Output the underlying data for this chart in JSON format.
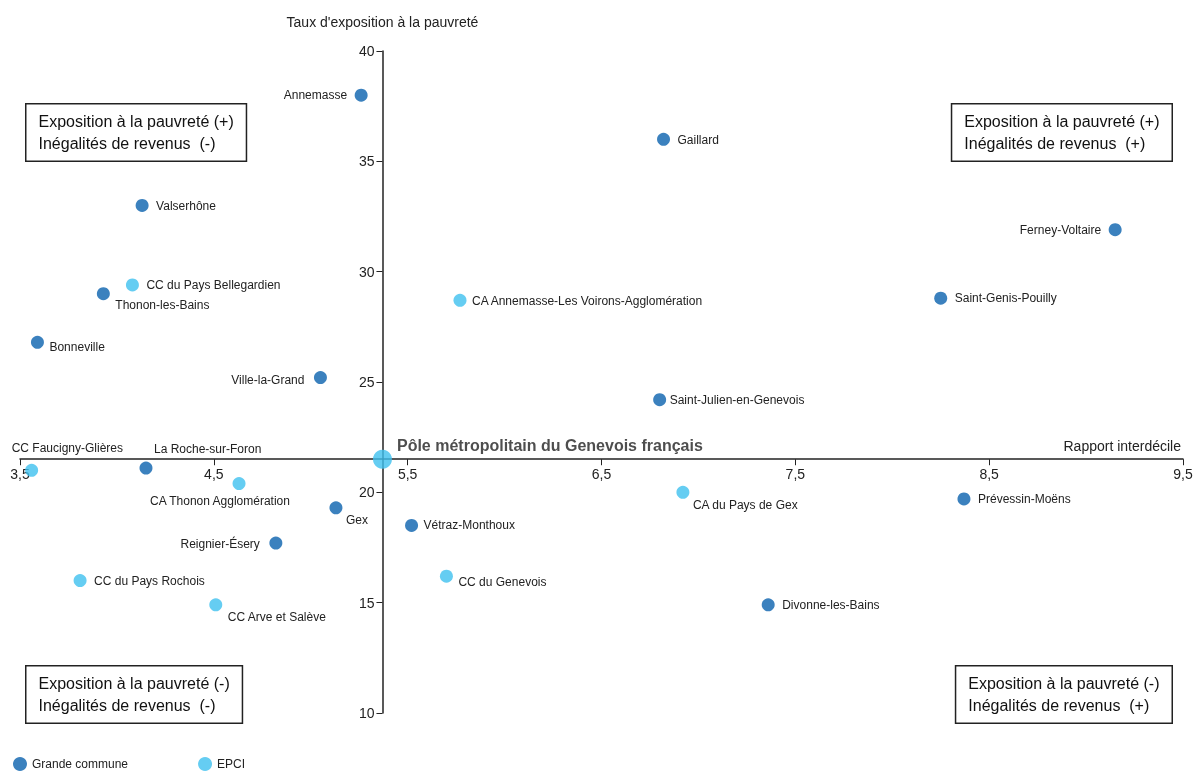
{
  "chart_data": {
    "type": "scatter",
    "xlabel": "Rapport interdécile",
    "ylabel": "Taux d'exposition à la pauvreté",
    "xlim": [
      3.5,
      9.5
    ],
    "xticks": [
      {
        "value": 3.5,
        "label": "3,5"
      },
      {
        "value": 4.5,
        "label": "4,5"
      },
      {
        "value": 5.5,
        "label": "5,5"
      },
      {
        "value": 6.5,
        "label": "6,5"
      },
      {
        "value": 7.5,
        "label": "7,5"
      },
      {
        "value": 8.5,
        "label": "8,5"
      },
      {
        "value": 9.5,
        "label": "9,5"
      }
    ],
    "ylim": [
      10,
      40
    ],
    "yticks": [
      10,
      15,
      20,
      25,
      30,
      35,
      40
    ],
    "grid": false,
    "legend": "bottom left",
    "marker": "circle",
    "series": [
      {
        "name": "Grande commune",
        "color": "#0a62ae",
        "x": [
          5.26,
          6.82,
          9.15,
          8.25,
          4.13,
          3.93,
          3.59,
          5.05,
          6.8,
          4.15,
          5.13,
          8.37,
          5.52,
          4.82,
          7.36
        ],
        "values": [
          38,
          36,
          31.9,
          28.8,
          33,
          29,
          26.8,
          25.2,
          24.2,
          21.1,
          19.3,
          19.7,
          18.5,
          17.7,
          14.9
        ]
      },
      {
        "name": "EPCI",
        "color": "#3ec1ef",
        "x": [
          4.08,
          5.77,
          3.56,
          4.63,
          6.92,
          3.81,
          5.7,
          4.51
        ],
        "values": [
          29.4,
          28.7,
          21,
          20.4,
          20,
          16,
          16.2,
          14.9
        ]
      },
      {
        "name": "Pôle métropolitain du Genevois français",
        "color": "#3ec1ef",
        "x": [
          5.37
        ],
        "values": [
          21.5
        ]
      }
    ],
    "annotations": [
      "Exposition à la pauvreté (+)\nInégalités de revenus  (-)",
      "Exposition à la pauvreté (+)\nInégalités de revenus  (+)",
      "Exposition à la pauvreté (-)\nInégalités de revenus  (-)",
      "Exposition à la pauvreté (-)\nInégalités de revenus  (+)",
      {
        "text": "Annemasse",
        "x": 5.26,
        "y": 38
      },
      {
        "text": "Gaillard",
        "x": 6.82,
        "y": 36
      },
      {
        "text": "Ferney-Voltaire",
        "x": 9.15,
        "y": 31.9
      },
      {
        "text": "Saint-Genis-Pouilly",
        "x": 8.25,
        "y": 28.8
      },
      {
        "text": "Valserhône",
        "x": 4.13,
        "y": 33
      },
      {
        "text": "Thonon-les-Bains",
        "x": 3.93,
        "y": 29
      },
      {
        "text": "Bonneville",
        "x": 3.59,
        "y": 26.8
      },
      {
        "text": "Ville-la-Grand",
        "x": 5.05,
        "y": 25.2
      },
      {
        "text": "Saint-Julien-en-Genevois",
        "x": 6.8,
        "y": 24.2
      },
      {
        "text": "La Roche-sur-Foron",
        "x": 4.15,
        "y": 21.1
      },
      {
        "text": "Gex",
        "x": 5.13,
        "y": 19.3
      },
      {
        "text": "Prévessin-Moëns",
        "x": 8.37,
        "y": 19.7
      },
      {
        "text": "Vétraz-Monthoux",
        "x": 5.52,
        "y": 18.5
      },
      {
        "text": "Reignier-Ésery",
        "x": 4.82,
        "y": 17.7
      },
      {
        "text": "Divonne-les-Bains",
        "x": 7.36,
        "y": 14.9
      },
      {
        "text": "CC du Pays Bellegardien",
        "x": 4.08,
        "y": 29.4
      },
      {
        "text": "CA Annemasse-Les Voirons-Agglomération",
        "x": 5.77,
        "y": 28.7
      },
      {
        "text": "CC Faucigny-Glières",
        "x": 3.56,
        "y": 21
      },
      {
        "text": "CA Thonon Agglomération",
        "x": 4.63,
        "y": 20.4
      },
      {
        "text": "CA du Pays de Gex",
        "x": 6.92,
        "y": 20
      },
      {
        "text": "CC du Pays Rochois",
        "x": 3.81,
        "y": 16
      },
      {
        "text": "CC du Genevois",
        "x": 5.7,
        "y": 16.2
      },
      {
        "text": "CC Arve et Salève",
        "x": 4.51,
        "y": 14.9
      }
    ]
  }
}
